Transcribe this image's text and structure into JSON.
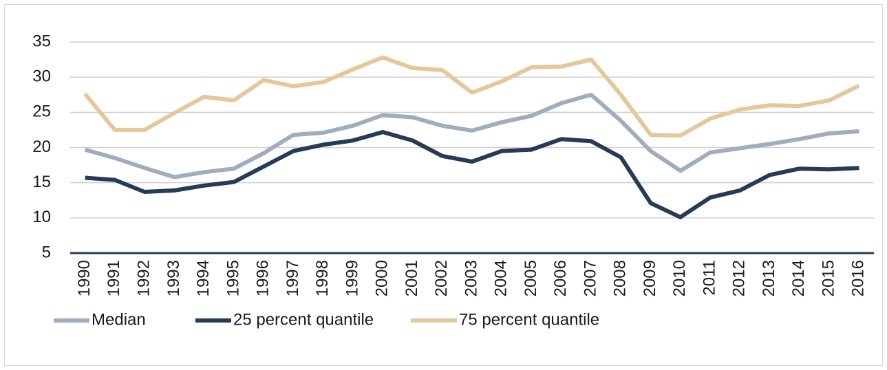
{
  "chart_data": {
    "type": "line",
    "categories": [
      "1990",
      "1991",
      "1992",
      "1993",
      "1994",
      "1995",
      "1996",
      "1997",
      "1998",
      "1999",
      "2000",
      "2001",
      "2002",
      "2003",
      "2004",
      "2005",
      "2006",
      "2007",
      "2008",
      "2009",
      "2010",
      "2011",
      "2012",
      "2013",
      "2014",
      "2015",
      "2016"
    ],
    "series": [
      {
        "name": "Median",
        "color": "#9fadbe",
        "values": [
          19.7,
          18.5,
          17.1,
          15.8,
          16.5,
          17.0,
          19.2,
          21.8,
          22.1,
          23.1,
          24.6,
          24.3,
          23.1,
          22.4,
          23.6,
          24.5,
          26.3,
          27.5,
          23.8,
          19.5,
          16.7,
          19.3,
          19.9,
          20.5,
          21.2,
          22.0,
          22.3
        ]
      },
      {
        "name": "25 percent quantile",
        "color": "#263b55",
        "values": [
          15.7,
          15.4,
          13.7,
          13.9,
          14.6,
          15.1,
          17.3,
          19.5,
          20.4,
          21.0,
          22.2,
          21.0,
          18.8,
          18.0,
          19.5,
          19.7,
          21.2,
          20.9,
          18.6,
          12.1,
          10.1,
          12.9,
          13.9,
          16.1,
          17.0,
          16.9,
          17.1
        ]
      },
      {
        "name": "75 percent quantile",
        "color": "#e4c89a",
        "values": [
          27.6,
          22.5,
          22.5,
          24.9,
          27.2,
          26.7,
          29.6,
          28.7,
          29.3,
          31.1,
          32.8,
          31.3,
          31.0,
          27.8,
          29.4,
          31.4,
          31.5,
          32.5,
          27.5,
          21.8,
          21.7,
          24.1,
          25.4,
          26.0,
          25.9,
          26.7,
          28.8
        ]
      }
    ],
    "ylim": [
      5,
      35
    ],
    "yticks": [
      5,
      10,
      15,
      20,
      25,
      30,
      35
    ],
    "grid": true,
    "legend": "bottom"
  }
}
